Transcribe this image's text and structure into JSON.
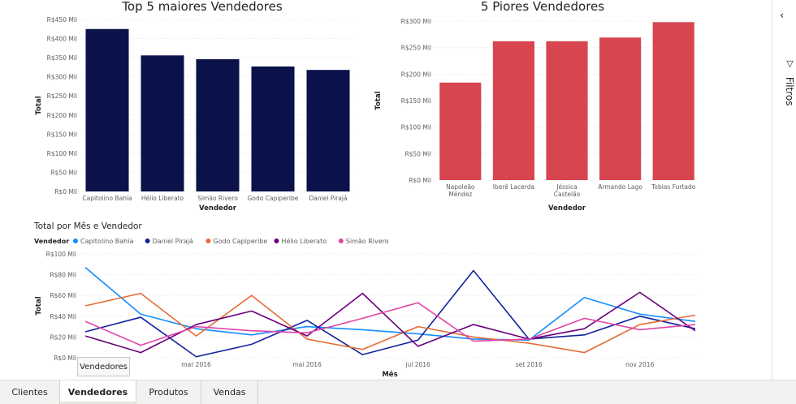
{
  "chart_data": [
    {
      "type": "bar",
      "title": "Top 5 maiores Vendedores",
      "xlabel": "Vendedor",
      "ylabel": "Total",
      "categories": [
        "Capitolino Bahía",
        "Hélio Liberato",
        "Simão Rivero",
        "Godo Capiperibe",
        "Daniel Pirajá"
      ],
      "values": [
        425,
        356,
        346,
        327,
        318
      ],
      "ylim": [
        0,
        450
      ],
      "yticks": [
        "R$0 Mil",
        "R$50 Mil",
        "R$100 Mil",
        "R$150 Mil",
        "R$200 Mil",
        "R$250 Mil",
        "R$300 Mil",
        "R$350 Mil",
        "R$400 Mil",
        "R$450 Mil"
      ],
      "color": "#0b124a",
      "grid": true
    },
    {
      "type": "bar",
      "title": "5 Piores Vendedores",
      "xlabel": "Vendedor",
      "ylabel": "Total",
      "categories": [
        "Napoleão Méndez",
        "Iberê Lacerda",
        "Jéssica Castelão",
        "Armando Lago",
        "Tobias Furtado"
      ],
      "values": [
        184,
        262,
        262,
        269,
        298
      ],
      "ylim": [
        0,
        300
      ],
      "yticks": [
        "R$0 Mil",
        "R$50 Mil",
        "R$100 Mil",
        "R$150 Mil",
        "R$200 Mil",
        "R$250 Mil",
        "R$300 Mil"
      ],
      "color": "#d64550",
      "grid": true
    },
    {
      "type": "line",
      "title": "Total por Mês e Vendedor",
      "xlabel": "Mês",
      "ylabel": "Total",
      "legend_title": "Vendedor",
      "legend_position": "top-left",
      "ylim": [
        0,
        100
      ],
      "yticks": [
        "R$0 Mil",
        "R$20 Mil",
        "R$40 Mil",
        "R$60 Mil",
        "R$80 Mil",
        "R$100 Mil"
      ],
      "xticks": [
        "ja",
        "mar 2016",
        "mai 2016",
        "jul 2016",
        "set 2016",
        "nov 2016"
      ],
      "x": [
        "jan 2016",
        "fev 2016",
        "mar 2016",
        "abr 2016",
        "mai 2016",
        "jun 2016",
        "jul 2016",
        "ago 2016",
        "set 2016",
        "out 2016",
        "nov 2016",
        "dez 2016"
      ],
      "series": [
        {
          "name": "Capitolino Bahía",
          "color": "#118dff",
          "values": [
            87,
            42,
            28,
            22,
            30,
            27,
            23,
            18,
            17,
            58,
            42,
            35
          ]
        },
        {
          "name": "Daniel Pirajá",
          "color": "#12239e",
          "values": [
            25,
            39,
            1,
            13,
            36,
            3,
            17,
            84,
            18,
            22,
            40,
            28
          ]
        },
        {
          "name": "Godo Capiperibe",
          "color": "#e66c37",
          "values": [
            50,
            62,
            21,
            60,
            18,
            8,
            30,
            20,
            14,
            5,
            32,
            41
          ]
        },
        {
          "name": "Hélio Liberato",
          "color": "#6b007b",
          "values": [
            21,
            5,
            32,
            45,
            21,
            62,
            11,
            32,
            18,
            28,
            63,
            26
          ]
        },
        {
          "name": "Simão Rivero",
          "color": "#e044a7",
          "values": [
            35,
            12,
            30,
            26,
            24,
            38,
            53,
            16,
            18,
            38,
            27,
            32
          ]
        }
      ],
      "grid": true
    }
  ],
  "filters": {
    "label": "Filtros",
    "collapse_icon": "chevron-left-icon",
    "funnel_icon": "funnel-icon"
  },
  "tabs": [
    {
      "label": "Clientes",
      "active": false
    },
    {
      "label": "Vendedores",
      "active": true
    },
    {
      "label": "Produtos",
      "active": false
    },
    {
      "label": "Vendas",
      "active": false
    }
  ],
  "tooltip": {
    "text": "Vendedores"
  }
}
